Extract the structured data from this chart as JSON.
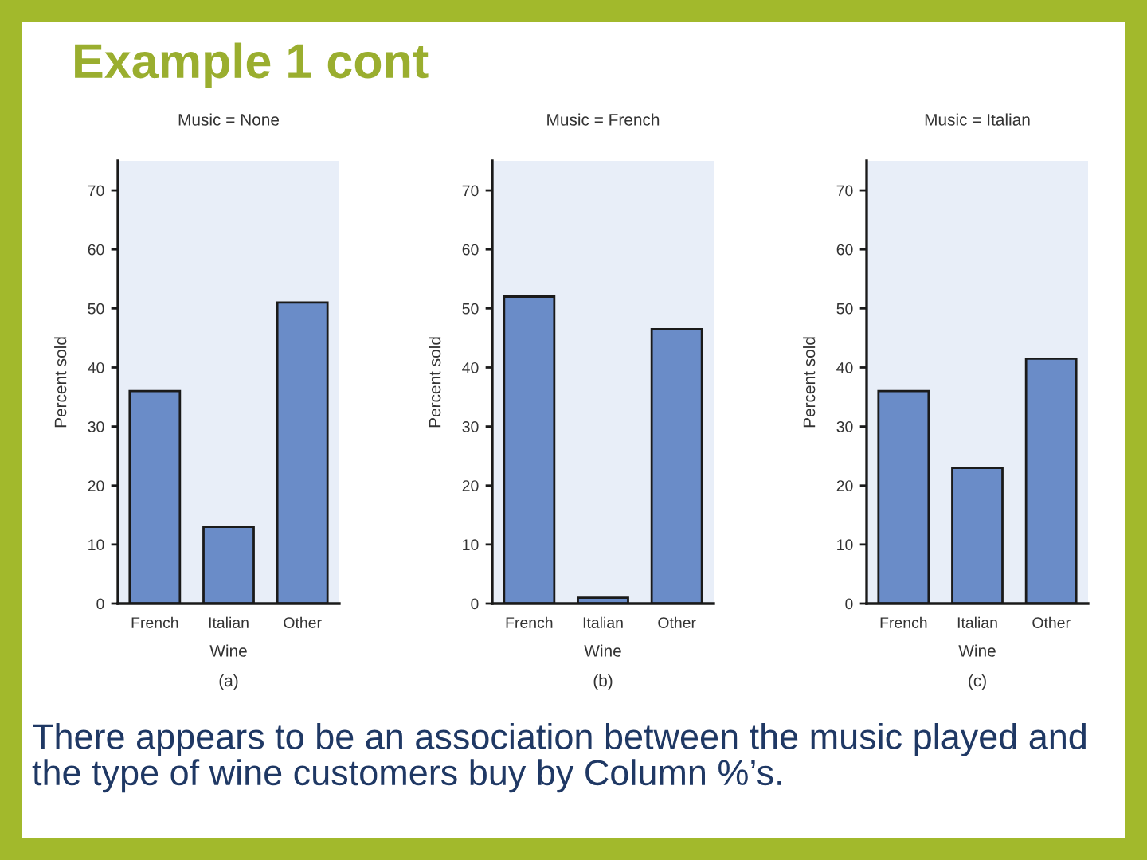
{
  "chart_data": [
    {
      "type": "other",
      "title": "Example 1 cont",
      "annotations": [
        "There appears to be an association between the music played and the type of wine customers buy by Column %’s."
      ]
    },
    {
      "type": "bar",
      "title": "Music = None",
      "xlabel": "Wine",
      "ylabel": "Percent sold",
      "categories": [
        "French",
        "Italian",
        "Other"
      ],
      "values": [
        36,
        13,
        51
      ],
      "color": "#6a8cc8",
      "ylim": [
        0,
        75
      ],
      "yticks": [
        0,
        10,
        20,
        30,
        40,
        50,
        60,
        70
      ],
      "annotations": [
        "(a)"
      ]
    },
    {
      "type": "bar",
      "title": "Music = French",
      "xlabel": "Wine",
      "ylabel": "Percent sold",
      "categories": [
        "French",
        "Italian",
        "Other"
      ],
      "values": [
        52,
        1,
        46.5
      ],
      "color": "#6a8cc8",
      "ylim": [
        0,
        75
      ],
      "yticks": [
        0,
        10,
        20,
        30,
        40,
        50,
        60,
        70
      ],
      "annotations": [
        "(b)"
      ]
    },
    {
      "type": "bar",
      "title": "Music = Italian",
      "xlabel": "Wine",
      "ylabel": "Percent sold",
      "categories": [
        "French",
        "Italian",
        "Other"
      ],
      "values": [
        36,
        23,
        41.5
      ],
      "color": "#6a8cc8",
      "ylim": [
        0,
        75
      ],
      "yticks": [
        0,
        10,
        20,
        30,
        40,
        50,
        60,
        70
      ],
      "annotations": [
        "(c)"
      ]
    }
  ]
}
